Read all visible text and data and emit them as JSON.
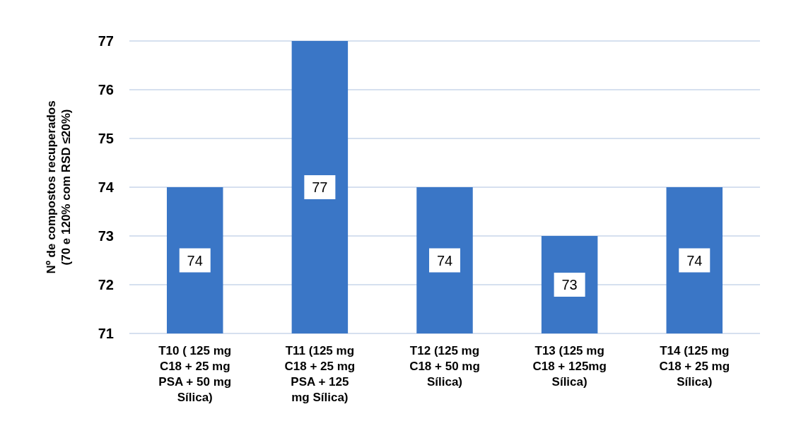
{
  "chart_data": {
    "type": "bar",
    "ylabel": "Nº de compostos recuperados (70 e 120% com RSD ≤20%)",
    "categories": [
      "T10 ( 125 mg C18 + 25 mg PSA + 50 mg Sílica)",
      "T11 (125 mg C18 + 25 mg PSA + 125 mg Sílica)",
      "T12 (125 mg C18 + 50 mg Sílica)",
      "T13 (125 mg C18 + 125mg Sílica)",
      "T14 (125 mg C18 + 25 mg Sílica)"
    ],
    "values": [
      74,
      77,
      74,
      73,
      74
    ],
    "color": "#3a76c6",
    "ylim": [
      71,
      77
    ],
    "yticks": [
      71,
      72,
      73,
      74,
      75,
      76,
      77
    ],
    "grid": "y",
    "data_labels": true
  }
}
